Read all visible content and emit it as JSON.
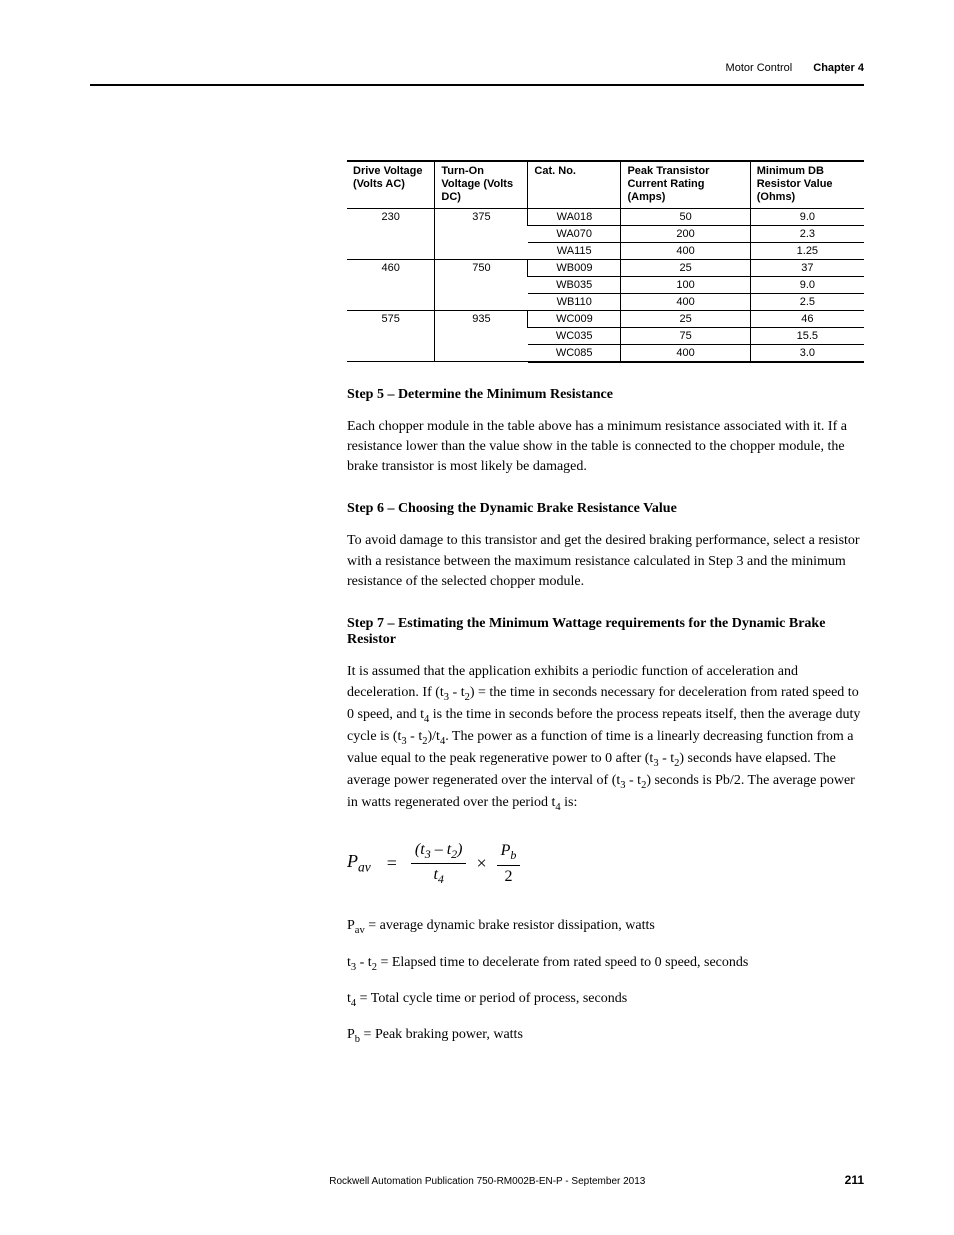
{
  "header": {
    "section": "Motor Control",
    "chapter": "Chapter 4"
  },
  "table": {
    "columns": [
      "Drive Voltage (Volts AC)",
      "Turn-On Voltage (Volts DC)",
      "Cat. No.",
      "Peak Transistor Current Rating (Amps)",
      "Minimum DB Resistor Value (Ohms)"
    ],
    "groups": [
      {
        "drive": "230",
        "turnon": "375",
        "rows": [
          {
            "cat": "WA018",
            "peak": "50",
            "min": "9.0"
          },
          {
            "cat": "WA070",
            "peak": "200",
            "min": "2.3"
          },
          {
            "cat": "WA115",
            "peak": "400",
            "min": "1.25"
          }
        ]
      },
      {
        "drive": "460",
        "turnon": "750",
        "rows": [
          {
            "cat": "WB009",
            "peak": "25",
            "min": "37"
          },
          {
            "cat": "WB035",
            "peak": "100",
            "min": "9.0"
          },
          {
            "cat": "WB110",
            "peak": "400",
            "min": "2.5"
          }
        ]
      },
      {
        "drive": "575",
        "turnon": "935",
        "rows": [
          {
            "cat": "WC009",
            "peak": "25",
            "min": "46"
          },
          {
            "cat": "WC035",
            "peak": "75",
            "min": "15.5"
          },
          {
            "cat": "WC085",
            "peak": "400",
            "min": "3.0"
          }
        ]
      }
    ]
  },
  "step5": {
    "title": "Step 5 – Determine the Minimum Resistance",
    "para": "Each chopper module in the table above has a minimum resistance associated with it. If a resistance lower than the value show in the table is connected to the chopper module, the brake transistor is most likely be damaged."
  },
  "step6": {
    "title": "Step 6 – Choosing the Dynamic Brake Resistance Value",
    "para": "To avoid damage to this transistor and get the desired braking performance, select a resistor with a resistance between the maximum resistance calculated in Step 3 and the minimum resistance of the selected chopper module."
  },
  "step7": {
    "title": "Step 7 – Estimating the Minimum Wattage requirements for the Dynamic Brake Resistor",
    "para1a": "It is assumed that the application exhibits a periodic function of acceleration and deceleration. If (t",
    "para1b": " - t",
    "para1c": ") = the time in seconds necessary for deceleration from rated speed to 0 speed, and t",
    "para1d": " is the time in seconds before the process repeats itself, then the average duty cycle is (t",
    "para1e": " - t",
    "para1f": ")/t",
    "para1g": ". The power as a function of time is a linearly decreasing function from a value equal to the peak regenerative power to 0 after (t",
    "para1h": " - t",
    "para1i": ") seconds have elapsed. The average power regenerated over the interval of (t",
    "para1j": " - t",
    "para1k": ") seconds is Pb/2. The average power in watts regenerated over the period t",
    "para1l": " is:",
    "sub3": "3",
    "sub2": "2",
    "sub4": "4",
    "eq": {
      "lhs_var": "P",
      "lhs_sub": "av",
      "num_l": "(t",
      "num_s1": "3",
      "num_m": " – t",
      "num_s2": "2",
      "num_r": ")",
      "den_var": "t",
      "den_sub": "4",
      "pb_var": "P",
      "pb_sub": "b",
      "pb_den": "2"
    },
    "defs": {
      "pav_pre": "P",
      "pav_sub": "av",
      "pav_post": " = average dynamic brake resistor dissipation, watts",
      "t32_pre": "t",
      "t32_s1": "3",
      "t32_mid": " - t",
      "t32_s2": "2",
      "t32_post": " = Elapsed time to decelerate from rated speed to 0 speed, seconds",
      "t4_pre": "t",
      "t4_sub": "4",
      "t4_post": " = Total cycle time or period of process, seconds",
      "pb_pre": "P",
      "pb_sub": "b",
      "pb_post": " = Peak braking power, watts"
    }
  },
  "footer": {
    "publication": "Rockwell Automation Publication 750-RM002B-EN-P - September 2013",
    "page": "211"
  }
}
